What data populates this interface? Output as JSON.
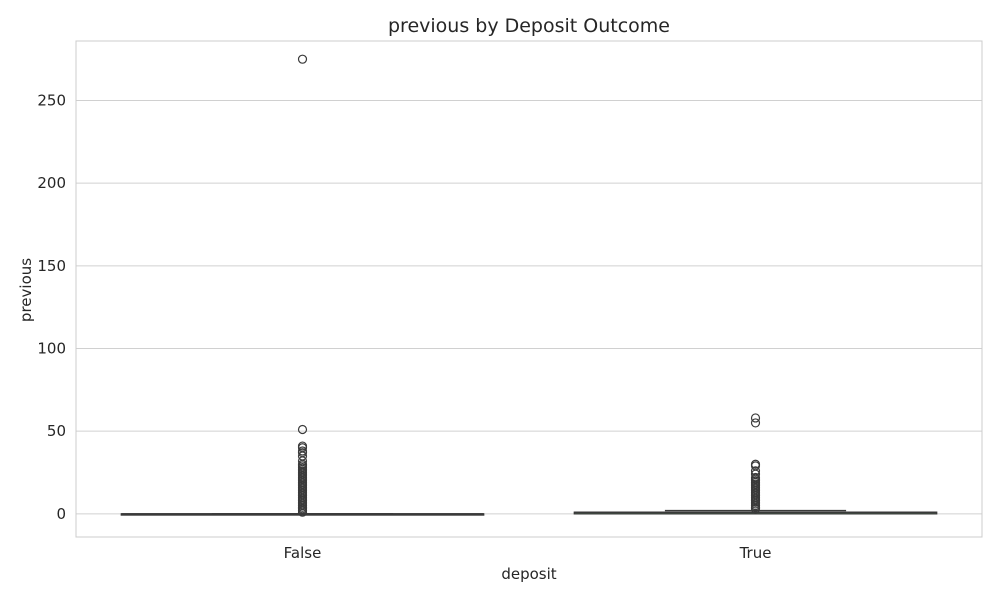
{
  "chart_data": {
    "type": "boxplot",
    "title": "previous by Deposit Outcome",
    "xlabel": "deposit",
    "ylabel": "previous",
    "categories": [
      "False",
      "True"
    ],
    "ylim": [
      -14,
      286
    ],
    "yticks": [
      0,
      50,
      100,
      150,
      200,
      250
    ],
    "grid": true,
    "colors": {
      "box": "#4f7a55",
      "outline": "#3a3a3a",
      "grid": "#d0d0d0"
    },
    "boxes": [
      {
        "category": "False",
        "min": 0,
        "q1": 0,
        "median": 0,
        "q3": 0,
        "max": 0,
        "outliers": [
          275,
          51,
          41,
          40,
          38,
          37,
          35,
          32,
          30,
          29,
          28,
          27,
          26,
          25,
          24,
          23,
          22,
          21,
          20,
          19,
          18,
          17,
          16,
          15,
          14,
          13,
          12,
          11,
          10,
          9,
          8,
          7,
          6,
          5,
          4,
          3,
          2,
          1
        ]
      },
      {
        "category": "True",
        "min": 0,
        "q1": 0,
        "median": 1,
        "q3": 1,
        "max": 2,
        "outliers": [
          58,
          55,
          30,
          29,
          26,
          24,
          22,
          21,
          20,
          19,
          18,
          17,
          16,
          15,
          14,
          13,
          12,
          11,
          10,
          9,
          8,
          7,
          6,
          5,
          4,
          3
        ]
      }
    ]
  }
}
